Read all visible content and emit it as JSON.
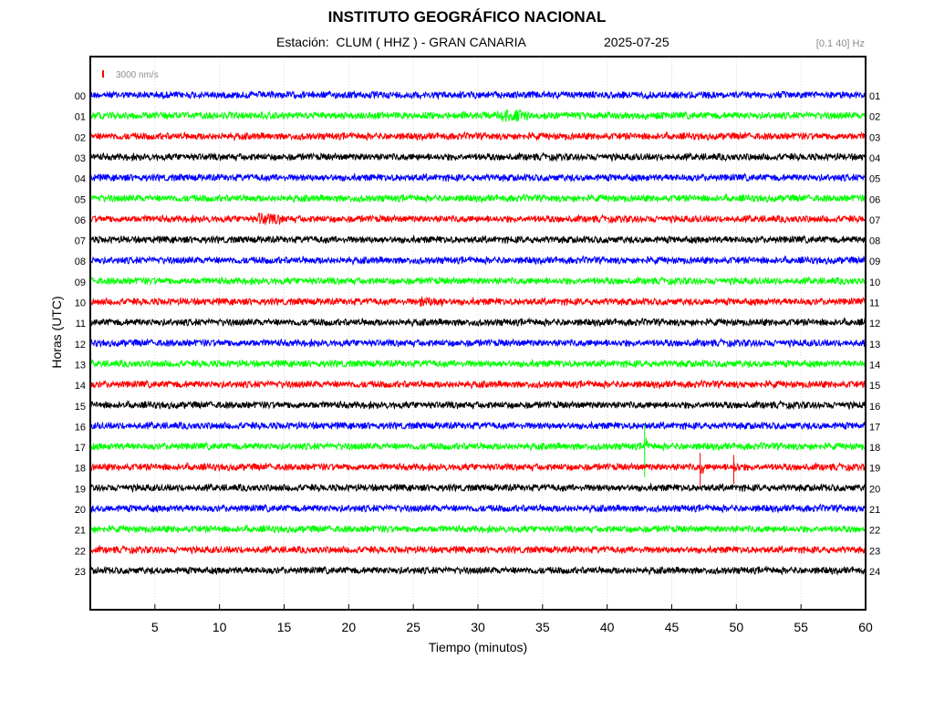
{
  "header": {
    "institution": "INSTITUTO GEOGRÁFICO NACIONAL",
    "station_line": "Estación:  CLUM ( HHZ ) - GRAN CANARIA",
    "date": "2025-07-25",
    "filter": "[0.1 40] Hz"
  },
  "chart_data": {
    "type": "line",
    "title": "INSTITUTO GEOGRÁFICO NACIONAL",
    "xlabel": "Tiempo (minutos)",
    "ylabel": "Horas (UTC)",
    "xlim": [
      0,
      60
    ],
    "x_ticks": [
      5,
      10,
      15,
      20,
      25,
      30,
      35,
      40,
      45,
      50,
      55,
      60
    ],
    "left_hour_labels": [
      "00",
      "01",
      "02",
      "03",
      "04",
      "05",
      "06",
      "07",
      "08",
      "09",
      "10",
      "11",
      "12",
      "13",
      "14",
      "15",
      "16",
      "17",
      "18",
      "19",
      "20",
      "21",
      "22",
      "23"
    ],
    "right_hour_labels": [
      "01",
      "02",
      "03",
      "04",
      "05",
      "06",
      "07",
      "08",
      "09",
      "10",
      "11",
      "12",
      "13",
      "14",
      "15",
      "16",
      "17",
      "18",
      "19",
      "20",
      "21",
      "22",
      "23",
      "24"
    ],
    "scale_label": "3000 nm/s",
    "grid": true,
    "trace_colors": [
      "#0000ff",
      "#00ff00",
      "#ff0000",
      "#000000"
    ],
    "events": [
      {
        "hour": 1,
        "minute": 31.5,
        "duration": 2.5,
        "amp": 2.2
      },
      {
        "hour": 6,
        "minute": 13.0,
        "duration": 2.0,
        "amp": 2.0
      },
      {
        "hour": 10,
        "minute": 25.5,
        "duration": 2.0,
        "amp": 1.7
      },
      {
        "hour": 17,
        "minute": 42.9,
        "duration": 0.2,
        "amp": 4.0
      },
      {
        "hour": 18,
        "minute": 47.2,
        "duration": 0.3,
        "amp": 2.6
      },
      {
        "hour": 18,
        "minute": 49.8,
        "duration": 0.4,
        "amp": 2.2
      },
      {
        "hour": 18,
        "minute": 54.0,
        "duration": 1.5,
        "amp": 1.0
      },
      {
        "hour": 18,
        "minute": 57.8,
        "duration": 1.0,
        "amp": 1.0
      }
    ]
  }
}
